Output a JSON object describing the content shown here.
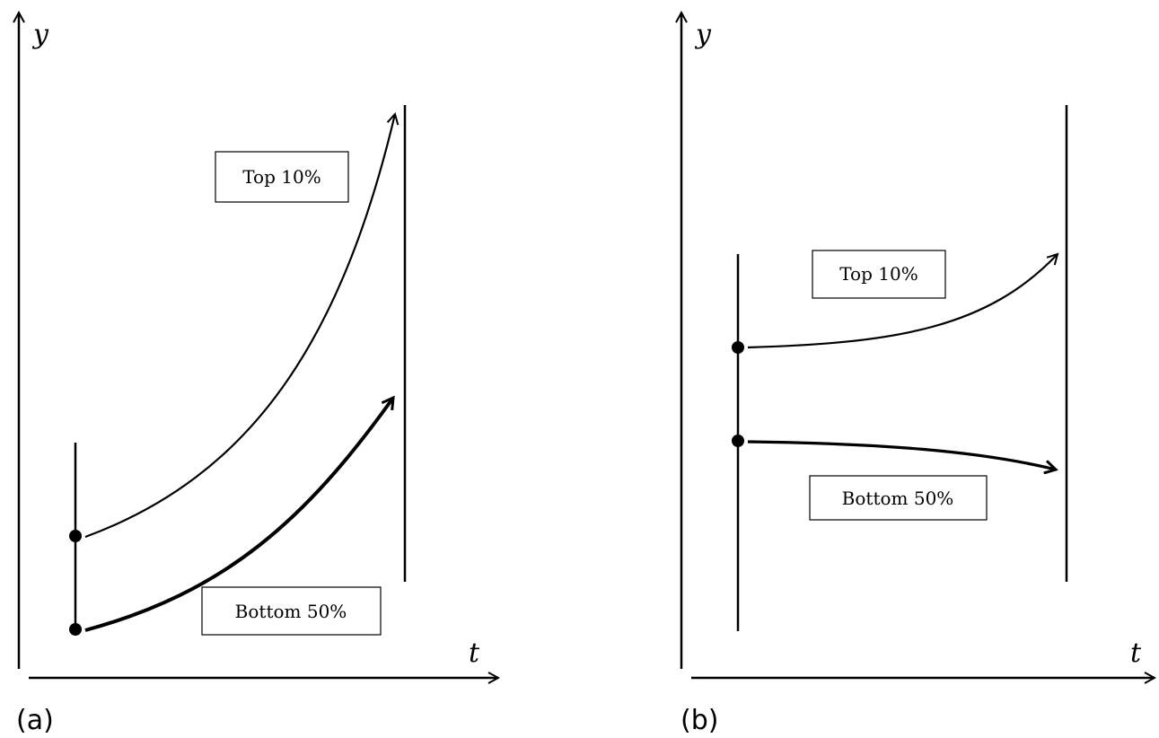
{
  "panels": [
    {
      "id": "a",
      "label": "(a)",
      "y_axis_label": "y",
      "x_axis_label": "t",
      "curves": [
        {
          "name": "top",
          "label": "Top 10%"
        },
        {
          "name": "bottom",
          "label": "Bottom 50%"
        }
      ]
    },
    {
      "id": "b",
      "label": "(b)",
      "y_axis_label": "y",
      "x_axis_label": "t",
      "curves": [
        {
          "name": "top",
          "label": "Top 10%"
        },
        {
          "name": "bottom",
          "label": "Bottom 50%"
        }
      ]
    }
  ]
}
